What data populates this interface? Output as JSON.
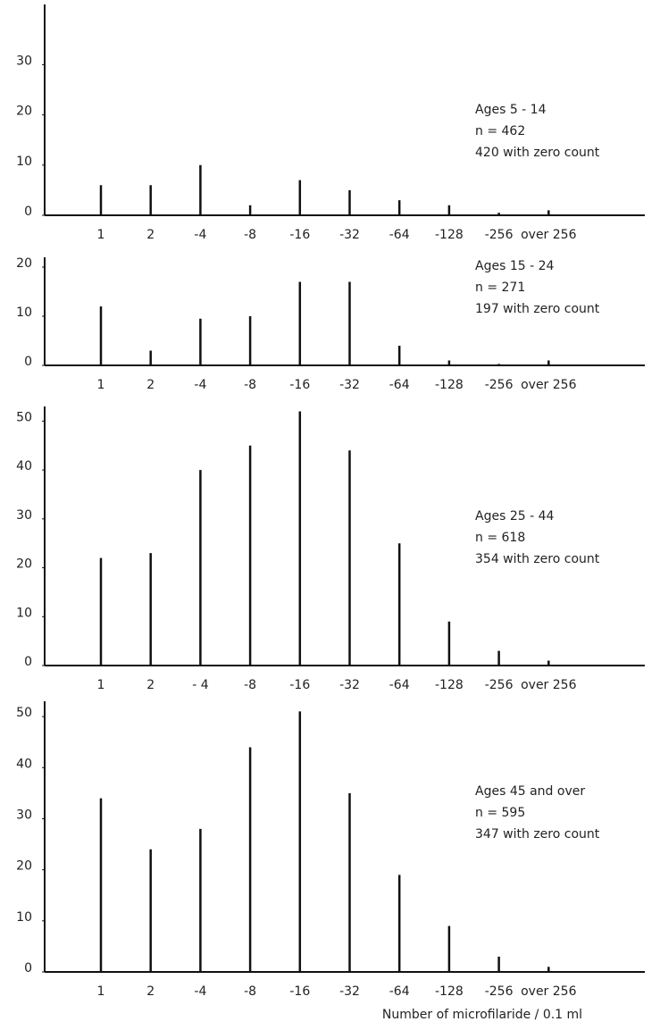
{
  "chart_data": [
    {
      "type": "bar",
      "categories": [
        "1",
        "2",
        "-4",
        "-8",
        "-16",
        "-32",
        "-64",
        "-128",
        "-256",
        "over 256"
      ],
      "values": [
        6,
        6,
        10,
        2,
        7,
        5,
        3,
        2,
        0.5,
        1
      ],
      "color": "#111111",
      "ylim": [
        0,
        42
      ],
      "yticks": [
        0,
        10,
        20,
        30
      ],
      "annotations": [
        "Ages 5 - 14",
        "n = 462",
        "420 with zero count"
      ]
    },
    {
      "type": "bar",
      "categories": [
        "1",
        "2",
        "-4",
        "-8",
        "-16",
        "-32",
        "-64",
        "-128",
        "-256",
        "over 256"
      ],
      "values": [
        12,
        3,
        9.5,
        10,
        17,
        17,
        4,
        1,
        0.3,
        1
      ],
      "color": "#111111",
      "ylim": [
        0,
        22
      ],
      "yticks": [
        0,
        10,
        20
      ],
      "annotations": [
        "Ages 15 - 24",
        "n = 271",
        "197 with zero count"
      ]
    },
    {
      "type": "bar",
      "categories": [
        "1",
        "2",
        "- 4",
        "-8",
        "-16",
        "-32",
        "-64",
        "-128",
        "-256",
        "over 256"
      ],
      "values": [
        22,
        23,
        40,
        45,
        52,
        44,
        25,
        9,
        3,
        1
      ],
      "color": "#111111",
      "ylim": [
        0,
        53
      ],
      "yticks": [
        0,
        10,
        20,
        30,
        40,
        50
      ],
      "annotations": [
        "Ages 25 - 44",
        "n = 618",
        "354 with zero count"
      ]
    },
    {
      "type": "bar",
      "categories": [
        "1",
        "2",
        "-4",
        "-8",
        "-16",
        "-32",
        "-64",
        "-128",
        "-256",
        "over 256"
      ],
      "values": [
        34,
        24,
        28,
        44,
        51,
        35,
        19,
        9,
        3,
        1
      ],
      "color": "#111111",
      "ylim": [
        0,
        53
      ],
      "yticks": [
        0,
        10,
        20,
        30,
        40,
        50
      ],
      "annotations": [
        "Ages 45 and over",
        "n = 595",
        "347 with zero count"
      ],
      "x_label": "Number of microfilaride / 0.1 ml"
    }
  ]
}
